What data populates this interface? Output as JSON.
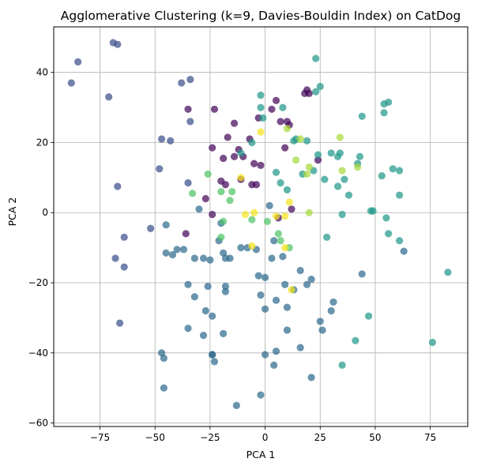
{
  "chart_data": {
    "type": "scatter",
    "title": "Agglomerative Clustering (k=9, Davies-Bouldin Index) on CatDog",
    "xlabel": "PCA 1",
    "ylabel": "PCA 2",
    "xlim": [
      -96,
      92
    ],
    "ylim": [
      -61,
      53
    ],
    "xticks": [
      -75,
      -50,
      -25,
      0,
      25,
      50,
      75
    ],
    "yticks": [
      -60,
      -40,
      -20,
      0,
      20,
      40
    ],
    "xtick_labels": [
      "−75",
      "−50",
      "−25",
      "0",
      "25",
      "50",
      "75"
    ],
    "ytick_labels": [
      "−60",
      "−40",
      "−20",
      "0",
      "20",
      "40"
    ],
    "grid": true,
    "colors": {
      "purple": "#44095a",
      "dark_blue": "#3b4f8c",
      "blue": "#2f6b8e",
      "teal": "#23998a",
      "green": "#4fc368",
      "lime": "#a7d83a",
      "yellow": "#f4e41f"
    },
    "points": [
      {
        "x": -85,
        "y": 43,
        "c": "dark_blue"
      },
      {
        "x": -88,
        "y": 37,
        "c": "dark_blue"
      },
      {
        "x": -69,
        "y": 48.5,
        "c": "dark_blue"
      },
      {
        "x": -67,
        "y": 48,
        "c": "dark_blue"
      },
      {
        "x": -71,
        "y": 33,
        "c": "dark_blue"
      },
      {
        "x": -67,
        "y": 7.5,
        "c": "dark_blue"
      },
      {
        "x": -64,
        "y": -7,
        "c": "dark_blue"
      },
      {
        "x": -68,
        "y": -13,
        "c": "dark_blue"
      },
      {
        "x": -64,
        "y": -15.5,
        "c": "dark_blue"
      },
      {
        "x": -66,
        "y": -31.5,
        "c": "dark_blue"
      },
      {
        "x": -52,
        "y": -4.5,
        "c": "dark_blue"
      },
      {
        "x": -48,
        "y": 12.5,
        "c": "dark_blue"
      },
      {
        "x": -47,
        "y": 21,
        "c": "dark_blue"
      },
      {
        "x": -43,
        "y": 20.5,
        "c": "dark_blue"
      },
      {
        "x": -38,
        "y": 37,
        "c": "dark_blue"
      },
      {
        "x": -34,
        "y": 38,
        "c": "dark_blue"
      },
      {
        "x": -35,
        "y": 29.5,
        "c": "purple"
      },
      {
        "x": -34,
        "y": 26,
        "c": "dark_blue"
      },
      {
        "x": -35,
        "y": 8.5,
        "c": "dark_blue"
      },
      {
        "x": -36,
        "y": -6,
        "c": "purple"
      },
      {
        "x": -23,
        "y": 29.5,
        "c": "purple"
      },
      {
        "x": -24,
        "y": 18.5,
        "c": "purple"
      },
      {
        "x": -27,
        "y": 4,
        "c": "purple"
      },
      {
        "x": -20,
        "y": 9,
        "c": "purple"
      },
      {
        "x": -18,
        "y": 8,
        "c": "purple"
      },
      {
        "x": -17,
        "y": 21.5,
        "c": "purple"
      },
      {
        "x": -14,
        "y": 25.5,
        "c": "purple"
      },
      {
        "x": -19,
        "y": 15.5,
        "c": "purple"
      },
      {
        "x": -14,
        "y": 16,
        "c": "purple"
      },
      {
        "x": -12,
        "y": 18,
        "c": "purple"
      },
      {
        "x": -10,
        "y": 16,
        "c": "purple"
      },
      {
        "x": -7,
        "y": 21,
        "c": "purple"
      },
      {
        "x": -11,
        "y": 9.5,
        "c": "purple"
      },
      {
        "x": -3,
        "y": 27,
        "c": "purple"
      },
      {
        "x": -5,
        "y": 14,
        "c": "purple"
      },
      {
        "x": -2,
        "y": 13.5,
        "c": "purple"
      },
      {
        "x": -6,
        "y": 8,
        "c": "purple"
      },
      {
        "x": -4,
        "y": 8,
        "c": "purple"
      },
      {
        "x": -24,
        "y": -0.5,
        "c": "purple"
      },
      {
        "x": 3,
        "y": 29.5,
        "c": "purple"
      },
      {
        "x": 7,
        "y": 26,
        "c": "purple"
      },
      {
        "x": 10,
        "y": 26,
        "c": "purple"
      },
      {
        "x": 11,
        "y": 25,
        "c": "purple"
      },
      {
        "x": 9,
        "y": 18.5,
        "c": "purple"
      },
      {
        "x": 18,
        "y": 34,
        "c": "purple"
      },
      {
        "x": 19,
        "y": 35,
        "c": "purple"
      },
      {
        "x": 20,
        "y": 34,
        "c": "purple"
      },
      {
        "x": 24,
        "y": 15,
        "c": "purple"
      },
      {
        "x": 6,
        "y": -1.5,
        "c": "purple"
      },
      {
        "x": 5,
        "y": 32,
        "c": "purple"
      },
      {
        "x": 12,
        "y": 1,
        "c": "purple"
      },
      {
        "x": -2,
        "y": 33.5,
        "c": "teal"
      },
      {
        "x": -2,
        "y": 30,
        "c": "teal"
      },
      {
        "x": -1,
        "y": 27,
        "c": "teal"
      },
      {
        "x": -6,
        "y": 20,
        "c": "teal"
      },
      {
        "x": 8,
        "y": 30,
        "c": "teal"
      },
      {
        "x": 13,
        "y": 20.5,
        "c": "teal"
      },
      {
        "x": 14,
        "y": 21,
        "c": "teal"
      },
      {
        "x": 5,
        "y": 11.5,
        "c": "teal"
      },
      {
        "x": 7,
        "y": 8.5,
        "c": "teal"
      },
      {
        "x": 10,
        "y": 6.5,
        "c": "teal"
      },
      {
        "x": 17,
        "y": 11,
        "c": "teal"
      },
      {
        "x": 19,
        "y": 20.5,
        "c": "teal"
      },
      {
        "x": 23,
        "y": 44,
        "c": "teal"
      },
      {
        "x": 25,
        "y": 36,
        "c": "teal"
      },
      {
        "x": 23,
        "y": 34.5,
        "c": "teal"
      },
      {
        "x": 24,
        "y": 16.5,
        "c": "teal"
      },
      {
        "x": 22,
        "y": 12,
        "c": "teal"
      },
      {
        "x": 27,
        "y": 9.5,
        "c": "teal"
      },
      {
        "x": 30,
        "y": 17,
        "c": "teal"
      },
      {
        "x": 33,
        "y": 16,
        "c": "teal"
      },
      {
        "x": 34,
        "y": 17,
        "c": "teal"
      },
      {
        "x": 33,
        "y": 7.5,
        "c": "teal"
      },
      {
        "x": 36,
        "y": 9.5,
        "c": "teal"
      },
      {
        "x": 38,
        "y": 5,
        "c": "teal"
      },
      {
        "x": 35,
        "y": -0.5,
        "c": "teal"
      },
      {
        "x": 28,
        "y": -7,
        "c": "teal"
      },
      {
        "x": 42,
        "y": 14,
        "c": "teal"
      },
      {
        "x": 43,
        "y": 16,
        "c": "teal"
      },
      {
        "x": 44,
        "y": 27.5,
        "c": "teal"
      },
      {
        "x": 48,
        "y": 0.5,
        "c": "teal"
      },
      {
        "x": 49,
        "y": 0.5,
        "c": "teal"
      },
      {
        "x": 53,
        "y": 10.5,
        "c": "teal"
      },
      {
        "x": 54,
        "y": 28.5,
        "c": "teal"
      },
      {
        "x": 54,
        "y": 31,
        "c": "teal"
      },
      {
        "x": 56,
        "y": 31.5,
        "c": "teal"
      },
      {
        "x": 58,
        "y": 12.5,
        "c": "teal"
      },
      {
        "x": 61,
        "y": 12,
        "c": "teal"
      },
      {
        "x": 61,
        "y": 5,
        "c": "teal"
      },
      {
        "x": 55,
        "y": -1.5,
        "c": "teal"
      },
      {
        "x": 56,
        "y": -6,
        "c": "teal"
      },
      {
        "x": 61,
        "y": -8,
        "c": "teal"
      },
      {
        "x": 47,
        "y": -29.5,
        "c": "teal"
      },
      {
        "x": 41,
        "y": -36.5,
        "c": "teal"
      },
      {
        "x": 35,
        "y": -43.5,
        "c": "teal"
      },
      {
        "x": 76,
        "y": -37,
        "c": "teal"
      },
      {
        "x": 83,
        "y": -17,
        "c": "teal"
      },
      {
        "x": -45,
        "y": -3.5,
        "c": "blue"
      },
      {
        "x": -45,
        "y": -11.5,
        "c": "blue"
      },
      {
        "x": -42,
        "y": -12,
        "c": "blue"
      },
      {
        "x": -40,
        "y": -10.5,
        "c": "blue"
      },
      {
        "x": -37,
        "y": -10.5,
        "c": "blue"
      },
      {
        "x": -35,
        "y": -20.5,
        "c": "blue"
      },
      {
        "x": -35,
        "y": -33,
        "c": "blue"
      },
      {
        "x": -32,
        "y": -13,
        "c": "blue"
      },
      {
        "x": -32,
        "y": -24,
        "c": "blue"
      },
      {
        "x": -30,
        "y": 1,
        "c": "blue"
      },
      {
        "x": -28,
        "y": -13,
        "c": "blue"
      },
      {
        "x": -27,
        "y": -28,
        "c": "blue"
      },
      {
        "x": -25,
        "y": -13.5,
        "c": "blue"
      },
      {
        "x": -26,
        "y": -21,
        "c": "blue"
      },
      {
        "x": -24,
        "y": -29.5,
        "c": "blue"
      },
      {
        "x": -24,
        "y": -40.5,
        "c": "blue"
      },
      {
        "x": -23,
        "y": -42.5,
        "c": "blue"
      },
      {
        "x": -21,
        "y": -8,
        "c": "blue"
      },
      {
        "x": -20,
        "y": -3,
        "c": "blue"
      },
      {
        "x": -19,
        "y": -11.5,
        "c": "blue"
      },
      {
        "x": -18,
        "y": -13,
        "c": "blue"
      },
      {
        "x": -18,
        "y": -21,
        "c": "blue"
      },
      {
        "x": -18,
        "y": -22.5,
        "c": "blue"
      },
      {
        "x": -19,
        "y": -34.5,
        "c": "blue"
      },
      {
        "x": -16,
        "y": -13,
        "c": "blue"
      },
      {
        "x": -13,
        "y": -55,
        "c": "blue"
      },
      {
        "x": -8,
        "y": -10,
        "c": "blue"
      },
      {
        "x": -4,
        "y": -10.5,
        "c": "blue"
      },
      {
        "x": -3,
        "y": -18,
        "c": "blue"
      },
      {
        "x": -2,
        "y": -23.5,
        "c": "blue"
      },
      {
        "x": 0,
        "y": -18.5,
        "c": "blue"
      },
      {
        "x": 0,
        "y": -27.5,
        "c": "blue"
      },
      {
        "x": 0,
        "y": -40.5,
        "c": "blue"
      },
      {
        "x": -2,
        "y": -52,
        "c": "blue"
      },
      {
        "x": 3,
        "y": -13,
        "c": "blue"
      },
      {
        "x": 4,
        "y": -8,
        "c": "blue"
      },
      {
        "x": 5,
        "y": -25,
        "c": "blue"
      },
      {
        "x": 5,
        "y": -39.5,
        "c": "blue"
      },
      {
        "x": 4,
        "y": -43.5,
        "c": "blue"
      },
      {
        "x": 8,
        "y": -12.5,
        "c": "blue"
      },
      {
        "x": 9,
        "y": -20.5,
        "c": "blue"
      },
      {
        "x": 10,
        "y": -27,
        "c": "blue"
      },
      {
        "x": 10,
        "y": -33.5,
        "c": "blue"
      },
      {
        "x": 13,
        "y": -22,
        "c": "blue"
      },
      {
        "x": 16,
        "y": -16.5,
        "c": "blue"
      },
      {
        "x": 16,
        "y": -38.5,
        "c": "blue"
      },
      {
        "x": 19,
        "y": -20.5,
        "c": "blue"
      },
      {
        "x": 21,
        "y": -19,
        "c": "blue"
      },
      {
        "x": 21,
        "y": -47,
        "c": "blue"
      },
      {
        "x": 25,
        "y": -31,
        "c": "blue"
      },
      {
        "x": 26,
        "y": -33.5,
        "c": "blue"
      },
      {
        "x": 30,
        "y": -28,
        "c": "blue"
      },
      {
        "x": 31,
        "y": -25.5,
        "c": "blue"
      },
      {
        "x": 44,
        "y": -17.5,
        "c": "blue"
      },
      {
        "x": 63,
        "y": -11,
        "c": "blue"
      },
      {
        "x": -46,
        "y": -41.5,
        "c": "blue"
      },
      {
        "x": -47,
        "y": -40,
        "c": "blue"
      },
      {
        "x": -46,
        "y": -50,
        "c": "blue"
      },
      {
        "x": -28,
        "y": -35,
        "c": "blue"
      },
      {
        "x": -24,
        "y": -40.5,
        "c": "blue"
      },
      {
        "x": 2,
        "y": 2,
        "c": "blue"
      },
      {
        "x": -11,
        "y": -10,
        "c": "blue"
      },
      {
        "x": -11,
        "y": 17,
        "c": "teal"
      },
      {
        "x": -11,
        "y": 10,
        "c": "yellow"
      },
      {
        "x": -26,
        "y": 11,
        "c": "green"
      },
      {
        "x": -33,
        "y": 5.5,
        "c": "green"
      },
      {
        "x": -20,
        "y": 6,
        "c": "green"
      },
      {
        "x": -15,
        "y": 6,
        "c": "green"
      },
      {
        "x": -16,
        "y": 3.5,
        "c": "green"
      },
      {
        "x": -20,
        "y": -7,
        "c": "green"
      },
      {
        "x": -19,
        "y": -2.5,
        "c": "green"
      },
      {
        "x": -6,
        "y": -2,
        "c": "green"
      },
      {
        "x": 6,
        "y": -6,
        "c": "green"
      },
      {
        "x": 7,
        "y": -8,
        "c": "green"
      },
      {
        "x": 11,
        "y": -10,
        "c": "green"
      },
      {
        "x": -2,
        "y": 23,
        "c": "yellow"
      },
      {
        "x": 10,
        "y": 24,
        "c": "lime"
      },
      {
        "x": 11,
        "y": 3,
        "c": "yellow"
      },
      {
        "x": 5,
        "y": -1,
        "c": "yellow"
      },
      {
        "x": 9,
        "y": -1,
        "c": "yellow"
      },
      {
        "x": 12,
        "y": -22,
        "c": "yellow"
      },
      {
        "x": 9,
        "y": -10,
        "c": "yellow"
      },
      {
        "x": -9,
        "y": -0.5,
        "c": "yellow"
      },
      {
        "x": -5,
        "y": 0,
        "c": "yellow"
      },
      {
        "x": -6,
        "y": -9.5,
        "c": "yellow"
      },
      {
        "x": 14,
        "y": 15,
        "c": "lime"
      },
      {
        "x": 19,
        "y": 11,
        "c": "lime"
      },
      {
        "x": 20,
        "y": 13,
        "c": "lime"
      },
      {
        "x": 20,
        "y": 0,
        "c": "lime"
      },
      {
        "x": 16,
        "y": 21,
        "c": "lime"
      },
      {
        "x": 34,
        "y": 21.5,
        "c": "lime"
      },
      {
        "x": 35,
        "y": 12,
        "c": "lime"
      },
      {
        "x": 42,
        "y": 13,
        "c": "lime"
      },
      {
        "x": 1,
        "y": -2.5,
        "c": "green"
      }
    ]
  }
}
